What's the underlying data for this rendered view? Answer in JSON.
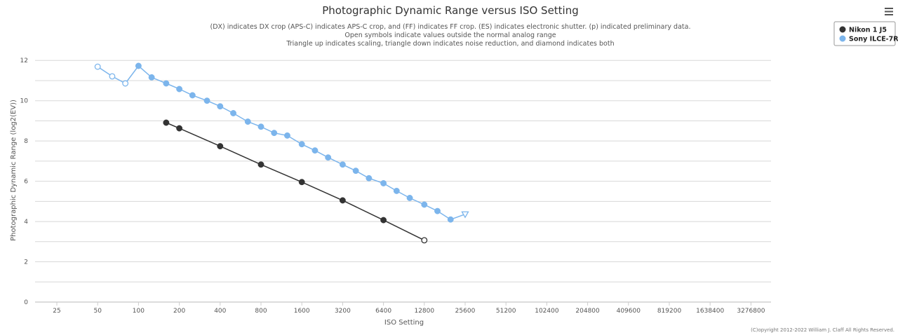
{
  "title": "Photographic Dynamic Range versus ISO Setting",
  "subtitle_lines": [
    "(DX) indicates DX crop (APS-C) indicates APS-C crop, and (FF) indicates FF crop. (ES) indicates electronic shutter. (p) indicated preliminary data.",
    "Open symbols indicate values outside the normal analog range",
    "Triangle up indicates scaling, triangle down indicates noise reduction, and diamond indicates both"
  ],
  "credits": "(C)opyright 2012-2022 William J. Claff All Rights Reserved.",
  "menu_icon": "hamburger-menu-icon",
  "colors": {
    "nikon": "#333333",
    "sony": "#7cb5ec",
    "grid": "#d8d8d8"
  },
  "chart_data": {
    "type": "line",
    "title": "Photographic Dynamic Range versus ISO Setting",
    "xlabel": "ISO Setting",
    "ylabel": "Photographic Dynamic Range (log2(EV))",
    "x_scale": "log2",
    "x_ticks": [
      25,
      50,
      100,
      200,
      400,
      800,
      1600,
      3200,
      6400,
      12800,
      25600,
      51200,
      102400,
      204800,
      409600,
      819200,
      1638400,
      3276800
    ],
    "y_ticks": [
      0,
      2,
      4,
      6,
      8,
      10,
      12
    ],
    "ylim": [
      0,
      12.6
    ],
    "grid": true,
    "legend_position": "top-right",
    "series": [
      {
        "name": "Nikon 1 J5",
        "color": "#333333",
        "points": [
          {
            "x": 160,
            "y": 8.91
          },
          {
            "x": 200,
            "y": 8.63
          },
          {
            "x": 400,
            "y": 7.74
          },
          {
            "x": 800,
            "y": 6.83
          },
          {
            "x": 1600,
            "y": 5.96
          },
          {
            "x": 3200,
            "y": 5.05
          },
          {
            "x": 6400,
            "y": 4.07
          },
          {
            "x": 12800,
            "y": 3.07,
            "marker": "open-circle"
          }
        ]
      },
      {
        "name": "Sony ILCE-7R",
        "color": "#7cb5ec",
        "points": [
          {
            "x": 50,
            "y": 11.69,
            "marker": "open-circle"
          },
          {
            "x": 64,
            "y": 11.21,
            "marker": "open-circle"
          },
          {
            "x": 80,
            "y": 10.86,
            "marker": "open-circle"
          },
          {
            "x": 100,
            "y": 11.73
          },
          {
            "x": 125,
            "y": 11.16
          },
          {
            "x": 160,
            "y": 10.86
          },
          {
            "x": 200,
            "y": 10.58
          },
          {
            "x": 250,
            "y": 10.27
          },
          {
            "x": 320,
            "y": 10.0
          },
          {
            "x": 400,
            "y": 9.72
          },
          {
            "x": 500,
            "y": 9.38
          },
          {
            "x": 640,
            "y": 8.96
          },
          {
            "x": 800,
            "y": 8.71
          },
          {
            "x": 1000,
            "y": 8.4
          },
          {
            "x": 1250,
            "y": 8.27
          },
          {
            "x": 1600,
            "y": 7.84
          },
          {
            "x": 2000,
            "y": 7.53
          },
          {
            "x": 2500,
            "y": 7.18
          },
          {
            "x": 3200,
            "y": 6.83
          },
          {
            "x": 4000,
            "y": 6.52
          },
          {
            "x": 5000,
            "y": 6.15
          },
          {
            "x": 6400,
            "y": 5.9
          },
          {
            "x": 8000,
            "y": 5.52
          },
          {
            "x": 10000,
            "y": 5.17
          },
          {
            "x": 12800,
            "y": 4.84
          },
          {
            "x": 16000,
            "y": 4.52
          },
          {
            "x": 20000,
            "y": 4.1
          },
          {
            "x": 25600,
            "y": 4.36,
            "marker": "open-triangle-down"
          }
        ]
      }
    ]
  }
}
